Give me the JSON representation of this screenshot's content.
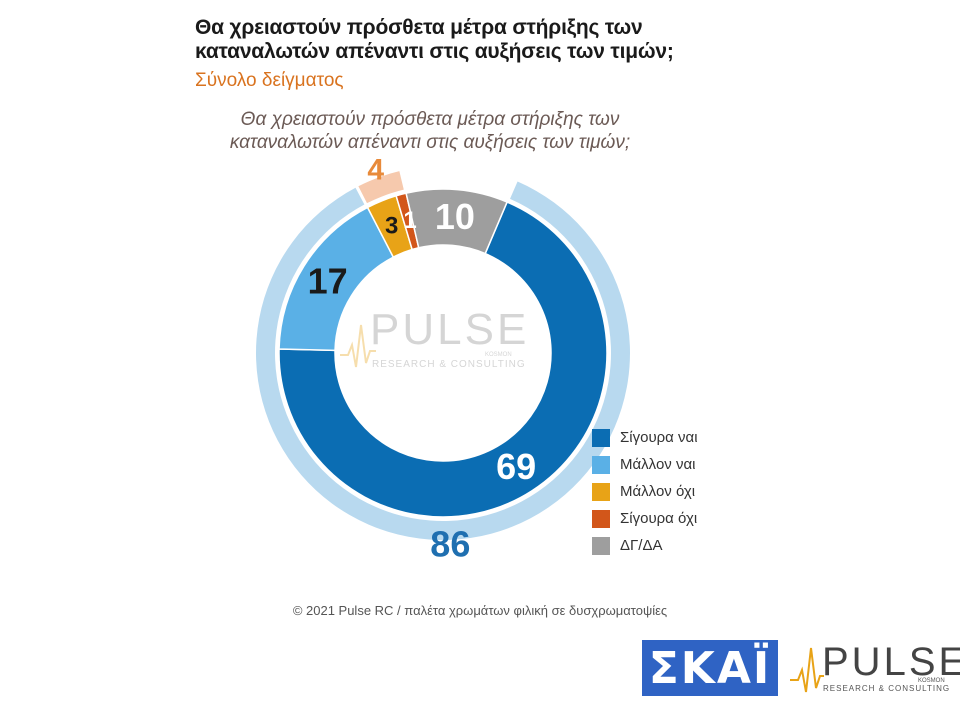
{
  "header": {
    "title": "Θα χρειαστούν πρόσθετα μέτρα στήριξης των καταναλωτών απέναντι στις αυξήσεις των τιμών;",
    "subtitle": "Σύνολο δείγματος"
  },
  "chart_data": {
    "type": "donut",
    "title": "Θα χρειαστούν πρόσθετα μέτρα στήριξης των καταναλωτών απέναντι στις αυξήσεις των τιμών;",
    "series": [
      {
        "name": "Σίγουρα ναι",
        "value": 69,
        "color": "#0b6db3"
      },
      {
        "name": "Μάλλον ναι",
        "value": 17,
        "color": "#5ab0e6"
      },
      {
        "name": "Μάλλον όχι",
        "value": 3,
        "color": "#e8a317"
      },
      {
        "name": "Σίγουρα όχι",
        "value": 1,
        "color": "#d2561a"
      },
      {
        "name": "ΔΓ/ΔΑ",
        "value": 10,
        "color": "#9e9e9e"
      }
    ],
    "outer_ring": [
      {
        "label": "86",
        "value": 86,
        "color": "#b8d9ef",
        "label_color": "#1f6fb0"
      },
      {
        "label": "4",
        "value": 4,
        "color": "#f6c9ad",
        "label_color": "#e88a3a"
      }
    ]
  },
  "watermark": {
    "word": "PULSE",
    "sub": "RESEARCH & CONSULTING",
    "tag": "KOSMON"
  },
  "footer": {
    "text": "© 2021 Pulse RC  /  παλέτα χρωμάτων φιλική σε δυσχρωματοψίες"
  },
  "logos": {
    "skai": "ΣΚΑΪ",
    "pulse_word": "PULSE",
    "pulse_sub": "RESEARCH & CONSULTING",
    "pulse_tag": "KOSMON",
    "skai_color": "#2f63c4"
  }
}
